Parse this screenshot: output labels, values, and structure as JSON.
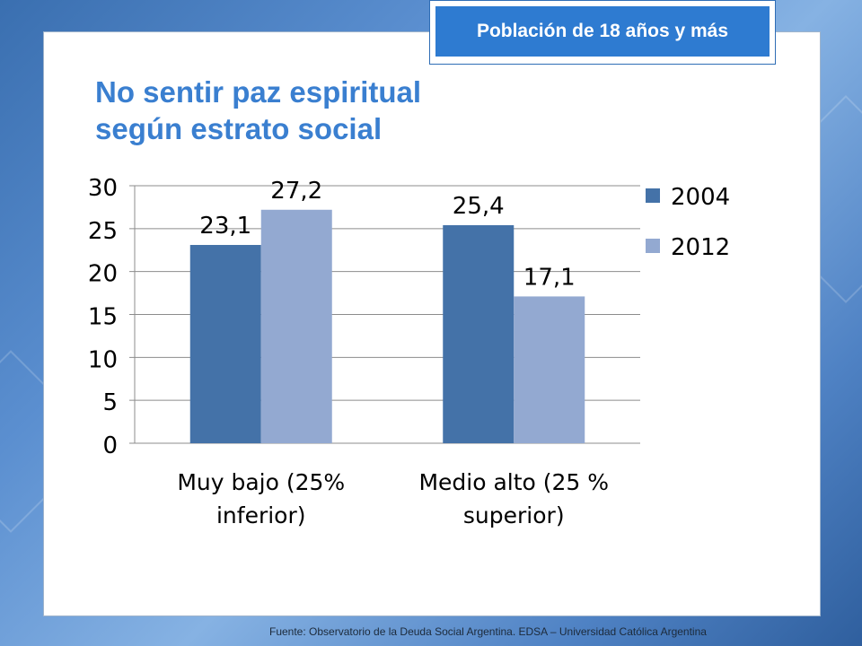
{
  "badge": {
    "text": "Población de 18 años y más"
  },
  "title": {
    "line1": "No sentir paz espiritual",
    "line2": "según estrato social"
  },
  "source": {
    "text": "Fuente:   Observatorio de  la Deuda Social Argentina. EDSA  – Universidad Católica Argentina"
  },
  "colors": {
    "series_2004": "#4472a8",
    "series_2012": "#93a9d1",
    "accent": "#2e7bd1"
  },
  "chart_data": {
    "type": "bar",
    "categories": [
      "Muy bajo (25% inferior)",
      "Medio alto (25 % superior)"
    ],
    "category_lines": [
      [
        "Muy bajo (25%",
        "inferior)"
      ],
      [
        "Medio alto (25 %",
        "superior)"
      ]
    ],
    "series": [
      {
        "name": "2004",
        "values": [
          23.1,
          25.4
        ],
        "labels": [
          "23,1",
          "25,4"
        ]
      },
      {
        "name": "2012",
        "values": [
          27.2,
          17.1
        ],
        "labels": [
          "27,2",
          "17,1"
        ]
      }
    ],
    "ylim": [
      0,
      30
    ],
    "yticks": [
      "0",
      "5",
      "10",
      "15",
      "20",
      "25",
      "30"
    ],
    "grid": true,
    "legend": "right"
  }
}
